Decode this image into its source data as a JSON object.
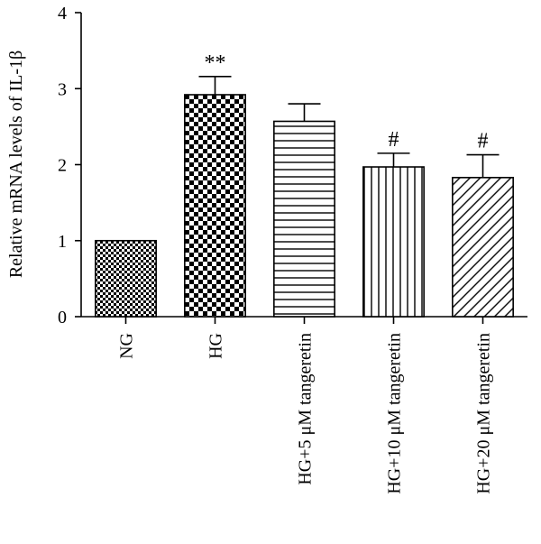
{
  "chart_data": {
    "type": "bar",
    "ylabel": "Relative mRNA levels of IL-1β",
    "ylim": [
      0,
      4
    ],
    "yticks": [
      "0",
      "1",
      "2",
      "3",
      "4"
    ],
    "categories": [
      "NG",
      "HG",
      "HG+5 μM tangeretin",
      "HG+10 μM tangeretin",
      "HG+20 μM tangeretin"
    ],
    "values": [
      1.0,
      2.92,
      2.57,
      1.97,
      1.83
    ],
    "errors": [
      0.0,
      0.24,
      0.23,
      0.18,
      0.3
    ],
    "significance": [
      "",
      "**",
      "",
      "#",
      "#"
    ],
    "patterns": [
      "small-checker",
      "large-checker",
      "horizontal-lines",
      "vertical-lines",
      "diagonal-lines"
    ],
    "grid": false,
    "bar_color": "#000000",
    "background": "#ffffff"
  }
}
